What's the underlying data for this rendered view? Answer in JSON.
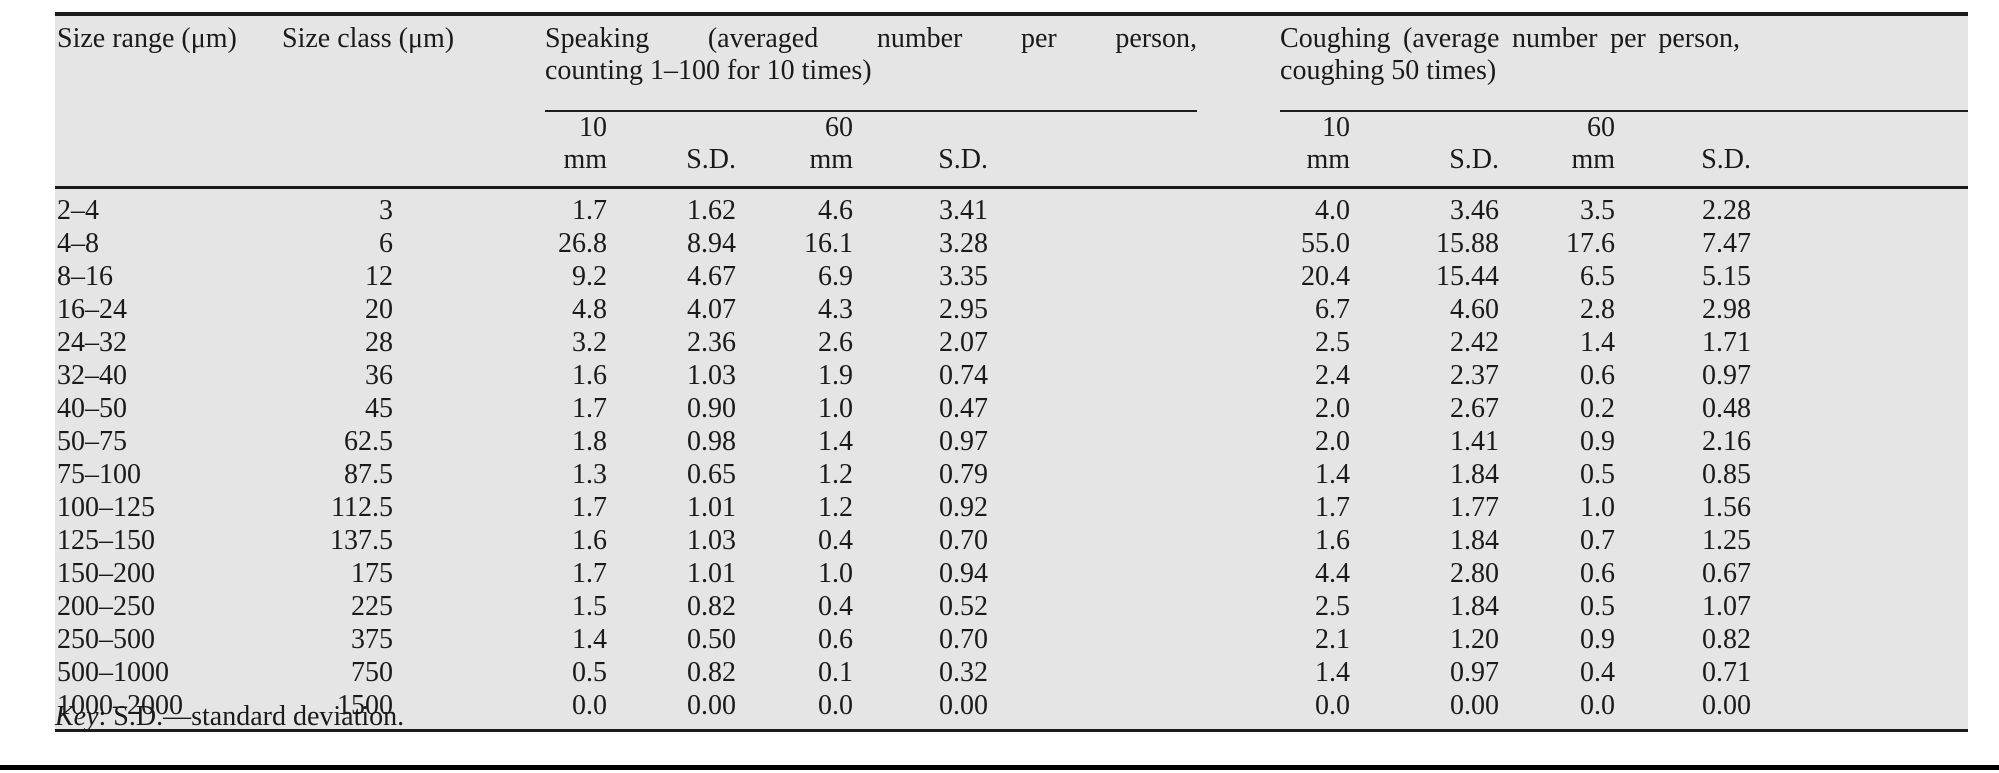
{
  "table": {
    "headers": {
      "size_range": "Size range (μm)",
      "size_class": "Size class (μm)",
      "speaking_group": {
        "line1": "Speaking (averaged number per person,",
        "line2": "counting 1–100 for 10 times)"
      },
      "coughing_group": {
        "line1": "Coughing (average number per person,",
        "line2": "coughing 50 times)"
      },
      "sub": [
        "10 mm",
        "S.D.",
        "60 mm",
        "S.D."
      ]
    },
    "rows": [
      {
        "size_range": "2–4",
        "size_class": "3",
        "speaking": [
          "1.7",
          "1.62",
          "4.6",
          "3.41"
        ],
        "coughing": [
          "4.0",
          "3.46",
          "3.5",
          "2.28"
        ]
      },
      {
        "size_range": "4–8",
        "size_class": "6",
        "speaking": [
          "26.8",
          "8.94",
          "16.1",
          "3.28"
        ],
        "coughing": [
          "55.0",
          "15.88",
          "17.6",
          "7.47"
        ]
      },
      {
        "size_range": "8–16",
        "size_class": "12",
        "speaking": [
          "9.2",
          "4.67",
          "6.9",
          "3.35"
        ],
        "coughing": [
          "20.4",
          "15.44",
          "6.5",
          "5.15"
        ]
      },
      {
        "size_range": "16–24",
        "size_class": "20",
        "speaking": [
          "4.8",
          "4.07",
          "4.3",
          "2.95"
        ],
        "coughing": [
          "6.7",
          "4.60",
          "2.8",
          "2.98"
        ]
      },
      {
        "size_range": "24–32",
        "size_class": "28",
        "speaking": [
          "3.2",
          "2.36",
          "2.6",
          "2.07"
        ],
        "coughing": [
          "2.5",
          "2.42",
          "1.4",
          "1.71"
        ]
      },
      {
        "size_range": "32–40",
        "size_class": "36",
        "speaking": [
          "1.6",
          "1.03",
          "1.9",
          "0.74"
        ],
        "coughing": [
          "2.4",
          "2.37",
          "0.6",
          "0.97"
        ]
      },
      {
        "size_range": "40–50",
        "size_class": "45",
        "speaking": [
          "1.7",
          "0.90",
          "1.0",
          "0.47"
        ],
        "coughing": [
          "2.0",
          "2.67",
          "0.2",
          "0.48"
        ]
      },
      {
        "size_range": "50–75",
        "size_class": "62.5",
        "speaking": [
          "1.8",
          "0.98",
          "1.4",
          "0.97"
        ],
        "coughing": [
          "2.0",
          "1.41",
          "0.9",
          "2.16"
        ]
      },
      {
        "size_range": "75–100",
        "size_class": "87.5",
        "speaking": [
          "1.3",
          "0.65",
          "1.2",
          "0.79"
        ],
        "coughing": [
          "1.4",
          "1.84",
          "0.5",
          "0.85"
        ]
      },
      {
        "size_range": "100–125",
        "size_class": "112.5",
        "speaking": [
          "1.7",
          "1.01",
          "1.2",
          "0.92"
        ],
        "coughing": [
          "1.7",
          "1.77",
          "1.0",
          "1.56"
        ]
      },
      {
        "size_range": "125–150",
        "size_class": "137.5",
        "speaking": [
          "1.6",
          "1.03",
          "0.4",
          "0.70"
        ],
        "coughing": [
          "1.6",
          "1.84",
          "0.7",
          "1.25"
        ]
      },
      {
        "size_range": "150–200",
        "size_class": "175",
        "speaking": [
          "1.7",
          "1.01",
          "1.0",
          "0.94"
        ],
        "coughing": [
          "4.4",
          "2.80",
          "0.6",
          "0.67"
        ]
      },
      {
        "size_range": "200–250",
        "size_class": "225",
        "speaking": [
          "1.5",
          "0.82",
          "0.4",
          "0.52"
        ],
        "coughing": [
          "2.5",
          "1.84",
          "0.5",
          "1.07"
        ]
      },
      {
        "size_range": "250–500",
        "size_class": "375",
        "speaking": [
          "1.4",
          "0.50",
          "0.6",
          "0.70"
        ],
        "coughing": [
          "2.1",
          "1.20",
          "0.9",
          "0.82"
        ]
      },
      {
        "size_range": "500–1000",
        "size_class": "750",
        "speaking": [
          "0.5",
          "0.82",
          "0.1",
          "0.32"
        ],
        "coughing": [
          "1.4",
          "0.97",
          "0.4",
          "0.71"
        ]
      },
      {
        "size_range": "1000–2000",
        "size_class": "1500",
        "speaking": [
          "0.0",
          "0.00",
          "0.0",
          "0.00"
        ],
        "coughing": [
          "0.0",
          "0.00",
          "0.0",
          "0.00"
        ]
      }
    ],
    "footnote": {
      "key_label": "Key",
      "text": ": S.D.—standard deviation."
    }
  }
}
